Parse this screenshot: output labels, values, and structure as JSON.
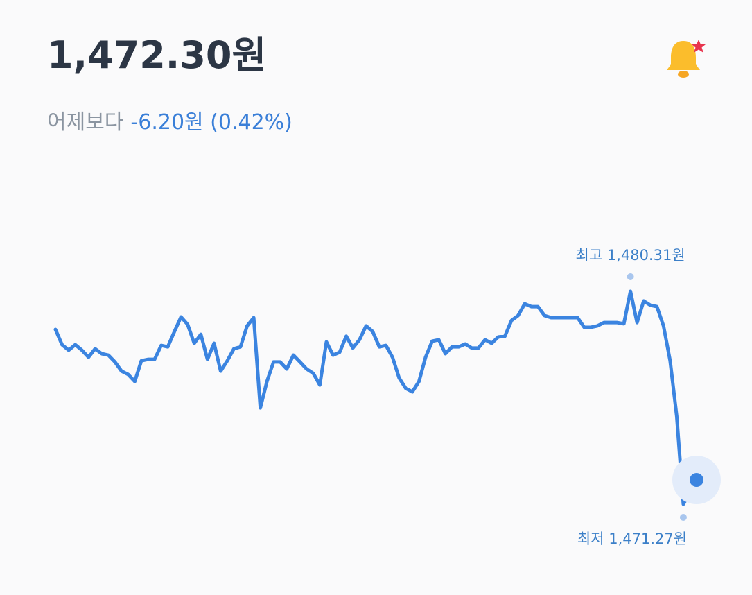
{
  "header": {
    "price": "1,472.30원",
    "compare_label": "어제보다",
    "change": "-6.20원 (0.42%)"
  },
  "chart_data": {
    "type": "line",
    "color": "#3b84e0",
    "high_label": "최고 1,480.31원",
    "low_label": "최저 1,471.27원",
    "values": [
      1478.69,
      1478.04,
      1477.81,
      1478.04,
      1477.81,
      1477.51,
      1477.87,
      1477.66,
      1477.6,
      1477.31,
      1476.92,
      1476.78,
      1476.48,
      1477.36,
      1477.42,
      1477.42,
      1478.01,
      1477.95,
      1478.6,
      1479.22,
      1478.9,
      1478.1,
      1478.48,
      1477.42,
      1478.1,
      1476.92,
      1477.36,
      1477.87,
      1477.95,
      1478.84,
      1479.19,
      1475.36,
      1476.48,
      1477.31,
      1477.31,
      1477.01,
      1477.6,
      1477.31,
      1477.01,
      1476.83,
      1476.33,
      1478.16,
      1477.6,
      1477.72,
      1478.4,
      1477.9,
      1478.25,
      1478.84,
      1478.6,
      1477.95,
      1478.01,
      1477.51,
      1476.63,
      1476.19,
      1476.04,
      1476.48,
      1477.51,
      1478.19,
      1478.25,
      1477.66,
      1477.95,
      1477.95,
      1478.07,
      1477.9,
      1477.9,
      1478.25,
      1478.1,
      1478.37,
      1478.4,
      1479.07,
      1479.28,
      1479.78,
      1479.66,
      1479.66,
      1479.28,
      1479.19,
      1479.19,
      1479.19,
      1479.19,
      1479.19,
      1478.78,
      1478.78,
      1478.84,
      1478.98,
      1478.98,
      1478.98,
      1478.93,
      1480.31,
      1478.98,
      1479.9,
      1479.72,
      1479.66,
      1478.84,
      1477.36,
      1475.01,
      1471.27,
      1471.77,
      1472.3
    ]
  }
}
